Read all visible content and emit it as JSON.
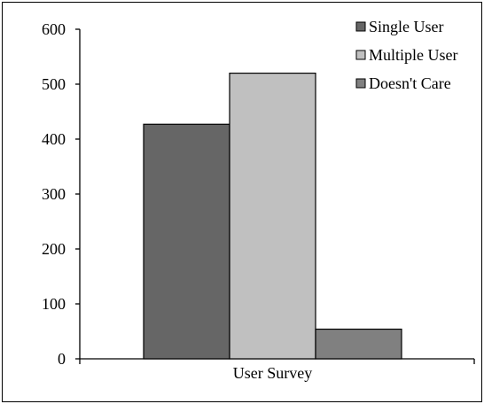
{
  "chart_data": {
    "type": "bar",
    "categories": [
      "User Survey"
    ],
    "series": [
      {
        "name": "Single User",
        "values": [
          427
        ],
        "color": "#666666"
      },
      {
        "name": "Multiple User",
        "values": [
          520
        ],
        "color": "#c0c0c0"
      },
      {
        "name": "Doesn't Care",
        "values": [
          54
        ],
        "color": "#808080"
      }
    ],
    "ylim": [
      0,
      600
    ],
    "yticks": [
      "0",
      "100",
      "200",
      "300",
      "400",
      "500",
      "600"
    ],
    "title": "",
    "xlabel": "",
    "ylabel": "",
    "grid": false,
    "legend_position": "top-right"
  }
}
